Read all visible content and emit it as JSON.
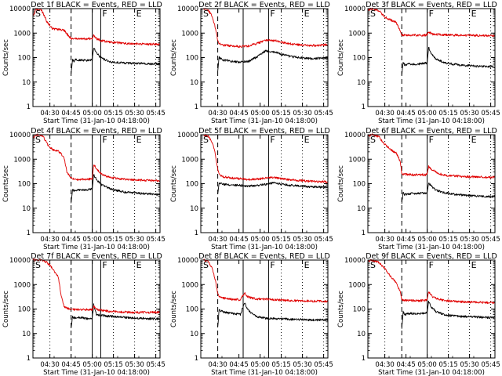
{
  "figure": {
    "x_ticks": [
      "04:30",
      "04:45",
      "05:00",
      "05:15",
      "05:30",
      "05:45"
    ],
    "y_ticks": [
      "1",
      "10",
      "100",
      "1000",
      "10000"
    ],
    "xlabel": "Start Time (31-Jan-10 04:18:00)",
    "ylabel": "Counts/sec",
    "colors": {
      "events": "#000000",
      "lld": "#e00000"
    }
  },
  "chart_data": [
    {
      "type": "line",
      "title": "Det 1f BLACK = Events, RED = LLD",
      "markers": [
        "S",
        "F",
        "E"
      ],
      "xlabel": "Start Time (31-Jan-10 04:18:00)",
      "ylabel": "Counts/sec",
      "y_scale": "log",
      "ylim": [
        1,
        10000
      ],
      "x_unit": "minutes since 04:18",
      "xlim": [
        0,
        90
      ],
      "x_ticks": [
        "04:30",
        "04:45",
        "05:00",
        "05:15",
        "05:30",
        "05:45"
      ],
      "vlines_dashed": [
        27
      ],
      "vlines_solid": [
        42,
        48
      ],
      "vlines_dotted": [
        12,
        57,
        72,
        87
      ],
      "series": [
        {
          "name": "Events",
          "color": "#000000",
          "x": [
            27,
            28,
            29,
            30,
            34,
            38,
            42,
            43,
            45,
            48,
            55,
            65,
            75,
            85,
            90
          ],
          "values": [
            20,
            80,
            70,
            80,
            80,
            75,
            80,
            250,
            160,
            100,
            65,
            60,
            58,
            55,
            55
          ]
        },
        {
          "name": "LLD",
          "color": "#e00000",
          "x": [
            0,
            2,
            6,
            10,
            14,
            18,
            22,
            25,
            27,
            30,
            38,
            42,
            43,
            45,
            48,
            55,
            65,
            75,
            90
          ],
          "values": [
            5000,
            9000,
            9000,
            2800,
            1500,
            1400,
            1300,
            800,
            600,
            580,
            580,
            600,
            800,
            600,
            500,
            420,
            380,
            360,
            350
          ]
        }
      ]
    },
    {
      "type": "line",
      "title": "Det 2f BLACK = Events, RED = LLD",
      "markers": [
        "S",
        "F",
        "E"
      ],
      "xlabel": "Start Time (31-Jan-10 04:18:00)",
      "ylabel": "Counts/sec",
      "y_scale": "log",
      "ylim": [
        1,
        10000
      ],
      "x_unit": "minutes since 04:18",
      "xlim": [
        0,
        90
      ],
      "x_ticks": [
        "04:30",
        "04:45",
        "05:00",
        "05:15",
        "05:30",
        "05:45"
      ],
      "vlines_dashed": [
        12
      ],
      "vlines_solid": [
        30,
        48
      ],
      "vlines_dotted": [
        57,
        72,
        87
      ],
      "series": [
        {
          "name": "Events",
          "color": "#000000",
          "x": [
            12,
            13,
            16,
            22,
            28,
            34,
            40,
            46,
            52,
            58,
            64,
            70,
            78,
            85,
            90
          ],
          "values": [
            30,
            100,
            80,
            70,
            65,
            70,
            110,
            190,
            170,
            130,
            110,
            100,
            90,
            95,
            100
          ]
        },
        {
          "name": "LLD",
          "color": "#e00000",
          "x": [
            2,
            5,
            8,
            10,
            12,
            13,
            16,
            22,
            28,
            34,
            40,
            46,
            52,
            58,
            64,
            70,
            78,
            85,
            90
          ],
          "values": [
            10000,
            9000,
            5000,
            2000,
            500,
            380,
            320,
            300,
            280,
            300,
            380,
            520,
            500,
            420,
            360,
            330,
            310,
            320,
            340
          ]
        }
      ]
    },
    {
      "type": "line",
      "title": "Det 3f BLACK = Events, RED = LLD",
      "markers": [
        "S",
        "F",
        "E"
      ],
      "xlabel": "Start Time (31-Jan-10 04:18:00)",
      "ylabel": "Counts/sec",
      "y_scale": "log",
      "ylim": [
        1,
        10000
      ],
      "x_unit": "minutes since 04:18",
      "xlim": [
        0,
        90
      ],
      "x_ticks": [
        "04:30",
        "04:45",
        "05:00",
        "05:15",
        "05:30",
        "05:45"
      ],
      "vlines_dashed": [
        24
      ],
      "vlines_solid": [
        42
      ],
      "vlines_dotted": [
        12,
        57,
        72,
        87
      ],
      "series": [
        {
          "name": "Events",
          "color": "#000000",
          "x": [
            24,
            25,
            26,
            30,
            36,
            42,
            43,
            45,
            48,
            55,
            65,
            75,
            85,
            90
          ],
          "values": [
            20,
            70,
            50,
            55,
            55,
            60,
            260,
            140,
            90,
            60,
            50,
            45,
            42,
            42
          ]
        },
        {
          "name": "LLD",
          "color": "#e00000",
          "x": [
            0,
            3,
            8,
            12,
            16,
            20,
            24,
            30,
            40,
            42,
            43,
            46,
            55,
            65,
            75,
            90
          ],
          "values": [
            9000,
            10000,
            8000,
            4500,
            3500,
            2800,
            850,
            820,
            820,
            850,
            1100,
            900,
            850,
            820,
            800,
            780
          ]
        }
      ]
    },
    {
      "type": "line",
      "title": "Det 4f BLACK = Events, RED = LLD",
      "markers": [
        "S",
        "F",
        "E"
      ],
      "xlabel": "Start Time (31-Jan-10 04:18:00)",
      "ylabel": "Counts/sec",
      "y_scale": "log",
      "ylim": [
        1,
        10000
      ],
      "x_unit": "minutes since 04:18",
      "xlim": [
        0,
        90
      ],
      "x_ticks": [
        "04:30",
        "04:45",
        "05:00",
        "05:15",
        "05:30",
        "05:45"
      ],
      "vlines_dashed": [
        27
      ],
      "vlines_solid": [
        42,
        48
      ],
      "vlines_dotted": [
        12,
        57,
        72,
        87
      ],
      "series": [
        {
          "name": "Events",
          "color": "#000000",
          "x": [
            27,
            28,
            29,
            30,
            34,
            38,
            42,
            43,
            45,
            48,
            55,
            65,
            75,
            85,
            90
          ],
          "values": [
            15,
            60,
            50,
            55,
            55,
            55,
            60,
            230,
            150,
            95,
            60,
            45,
            40,
            38,
            36
          ]
        },
        {
          "name": "LLD",
          "color": "#e00000",
          "x": [
            0,
            3,
            7,
            11,
            14,
            18,
            22,
            24,
            27,
            30,
            38,
            42,
            43,
            46,
            50,
            55,
            65,
            75,
            90
          ],
          "values": [
            8000,
            10000,
            9000,
            3500,
            2500,
            2200,
            1200,
            300,
            180,
            150,
            150,
            160,
            600,
            350,
            220,
            180,
            150,
            140,
            130
          ]
        }
      ]
    },
    {
      "type": "line",
      "title": "Det 5f BLACK = Events, RED = LLD",
      "markers": [
        "S",
        "F",
        "E"
      ],
      "xlabel": "Start Time (31-Jan-10 04:18:00)",
      "ylabel": "Counts/sec",
      "y_scale": "log",
      "ylim": [
        1,
        10000
      ],
      "x_unit": "minutes since 04:18",
      "xlim": [
        0,
        90
      ],
      "x_ticks": [
        "04:30",
        "04:45",
        "05:00",
        "05:15",
        "05:30",
        "05:45"
      ],
      "vlines_dashed": [
        12
      ],
      "vlines_solid": [
        30,
        48
      ],
      "vlines_dotted": [
        57,
        72,
        87
      ],
      "series": [
        {
          "name": "Events",
          "color": "#000000",
          "x": [
            12,
            13,
            16,
            22,
            28,
            34,
            40,
            46,
            52,
            58,
            64,
            70,
            78,
            85,
            90
          ],
          "values": [
            40,
            110,
            95,
            90,
            85,
            80,
            85,
            95,
            110,
            95,
            85,
            80,
            75,
            72,
            70
          ]
        },
        {
          "name": "LLD",
          "color": "#e00000",
          "x": [
            2,
            5,
            8,
            10,
            12,
            13,
            16,
            22,
            28,
            34,
            40,
            46,
            52,
            58,
            64,
            70,
            78,
            85,
            90
          ],
          "values": [
            10000,
            9000,
            5000,
            2000,
            400,
            250,
            190,
            170,
            160,
            150,
            155,
            170,
            180,
            160,
            145,
            135,
            125,
            120,
            120
          ]
        }
      ]
    },
    {
      "type": "line",
      "title": "Det 6f BLACK = Events, RED = LLD",
      "markers": [
        "S",
        "F",
        "E"
      ],
      "xlabel": "Start Time (31-Jan-10 04:18:00)",
      "ylabel": "Counts/sec",
      "y_scale": "log",
      "ylim": [
        1,
        10000
      ],
      "x_unit": "minutes since 04:18",
      "xlim": [
        0,
        90
      ],
      "x_ticks": [
        "04:30",
        "04:45",
        "05:00",
        "05:15",
        "05:30",
        "05:45"
      ],
      "vlines_dashed": [
        24
      ],
      "vlines_solid": [
        42
      ],
      "vlines_dotted": [
        12,
        57,
        72,
        87
      ],
      "series": [
        {
          "name": "Events",
          "color": "#000000",
          "x": [
            24,
            25,
            26,
            30,
            36,
            42,
            43,
            45,
            48,
            55,
            65,
            75,
            85,
            90
          ],
          "values": [
            15,
            45,
            35,
            40,
            40,
            42,
            110,
            80,
            55,
            42,
            35,
            32,
            30,
            30
          ]
        },
        {
          "name": "LLD",
          "color": "#e00000",
          "x": [
            0,
            3,
            8,
            12,
            16,
            20,
            23,
            24,
            30,
            40,
            42,
            43,
            46,
            50,
            55,
            65,
            75,
            90
          ],
          "values": [
            9000,
            10000,
            8000,
            4000,
            2500,
            1800,
            800,
            250,
            230,
            230,
            240,
            500,
            350,
            260,
            220,
            200,
            190,
            180
          ]
        }
      ]
    },
    {
      "type": "line",
      "title": "Det 7f BLACK = Events, RED = LLD",
      "markers": [
        "S",
        "F",
        "E"
      ],
      "xlabel": "Start Time (31-Jan-10 04:18:00)",
      "ylabel": "Counts/sec",
      "y_scale": "log",
      "ylim": [
        1,
        10000
      ],
      "x_unit": "minutes since 04:18",
      "xlim": [
        0,
        90
      ],
      "x_ticks": [
        "04:30",
        "04:45",
        "05:00",
        "05:15",
        "05:30",
        "05:45"
      ],
      "vlines_dashed": [
        27
      ],
      "vlines_solid": [
        42,
        48
      ],
      "vlines_dotted": [
        12,
        57,
        72,
        87
      ],
      "series": [
        {
          "name": "Events",
          "color": "#000000",
          "x": [
            27,
            28,
            29,
            30,
            34,
            38,
            42,
            43,
            45,
            48,
            55,
            65,
            75,
            85,
            90
          ],
          "values": [
            15,
            50,
            42,
            45,
            45,
            40,
            42,
            150,
            60,
            55,
            50,
            45,
            42,
            40,
            40
          ]
        },
        {
          "name": "LLD",
          "color": "#e00000",
          "x": [
            0,
            3,
            6,
            10,
            14,
            18,
            20,
            22,
            24,
            27,
            30,
            36,
            42,
            43,
            45,
            50,
            55,
            65,
            75,
            90
          ],
          "values": [
            10000,
            10000,
            10000,
            8000,
            4500,
            2000,
            350,
            130,
            110,
            100,
            95,
            95,
            95,
            130,
            95,
            85,
            80,
            75,
            72,
            75
          ]
        }
      ]
    },
    {
      "type": "line",
      "title": "Det 8f BLACK = Events, RED = LLD",
      "markers": [
        "S",
        "F",
        "E"
      ],
      "xlabel": "Start Time (31-Jan-10 04:18:00)",
      "ylabel": "Counts/sec",
      "y_scale": "log",
      "ylim": [
        1,
        10000
      ],
      "x_unit": "minutes since 04:18",
      "xlim": [
        0,
        90
      ],
      "x_ticks": [
        "04:30",
        "04:45",
        "05:00",
        "05:15",
        "05:30",
        "05:45"
      ],
      "vlines_dashed": [
        12
      ],
      "vlines_solid": [
        30,
        48
      ],
      "vlines_dotted": [
        57,
        72,
        87
      ],
      "series": [
        {
          "name": "Events",
          "color": "#000000",
          "x": [
            12,
            13,
            16,
            22,
            28,
            31,
            33,
            36,
            40,
            46,
            52,
            58,
            64,
            70,
            78,
            85,
            90
          ],
          "values": [
            20,
            90,
            75,
            65,
            60,
            180,
            100,
            65,
            48,
            42,
            40,
            40,
            38,
            37,
            36,
            36,
            36
          ]
        },
        {
          "name": "LLD",
          "color": "#e00000",
          "x": [
            2,
            5,
            8,
            10,
            12,
            13,
            16,
            22,
            28,
            31,
            33,
            36,
            40,
            46,
            52,
            58,
            64,
            70,
            78,
            85,
            90
          ],
          "values": [
            10000,
            9000,
            5000,
            1800,
            450,
            300,
            280,
            250,
            240,
            450,
            320,
            280,
            260,
            250,
            240,
            230,
            220,
            220,
            210,
            210,
            205
          ]
        }
      ]
    },
    {
      "type": "line",
      "title": "Det 9f BLACK = Events, RED = LLD",
      "markers": [
        "S",
        "F",
        "E"
      ],
      "xlabel": "Start Time (31-Jan-10 04:18:00)",
      "ylabel": "Counts/sec",
      "y_scale": "log",
      "ylim": [
        1,
        10000
      ],
      "x_unit": "minutes since 04:18",
      "xlim": [
        0,
        90
      ],
      "x_ticks": [
        "04:30",
        "04:45",
        "05:00",
        "05:15",
        "05:30",
        "05:45"
      ],
      "vlines_dashed": [
        24
      ],
      "vlines_solid": [
        42
      ],
      "vlines_dotted": [
        12,
        57,
        72,
        87
      ],
      "series": [
        {
          "name": "Events",
          "color": "#000000",
          "x": [
            24,
            25,
            26,
            30,
            36,
            42,
            43,
            45,
            48,
            55,
            65,
            75,
            85,
            90
          ],
          "values": [
            15,
            75,
            60,
            65,
            65,
            70,
            200,
            120,
            80,
            58,
            50,
            48,
            45,
            45
          ]
        },
        {
          "name": "LLD",
          "color": "#e00000",
          "x": [
            0,
            3,
            8,
            12,
            16,
            20,
            23,
            24,
            30,
            40,
            42,
            43,
            46,
            50,
            55,
            65,
            75,
            90
          ],
          "values": [
            9000,
            10000,
            8000,
            4500,
            2200,
            1200,
            500,
            240,
            220,
            220,
            230,
            500,
            320,
            250,
            220,
            200,
            190,
            180
          ]
        }
      ]
    }
  ]
}
